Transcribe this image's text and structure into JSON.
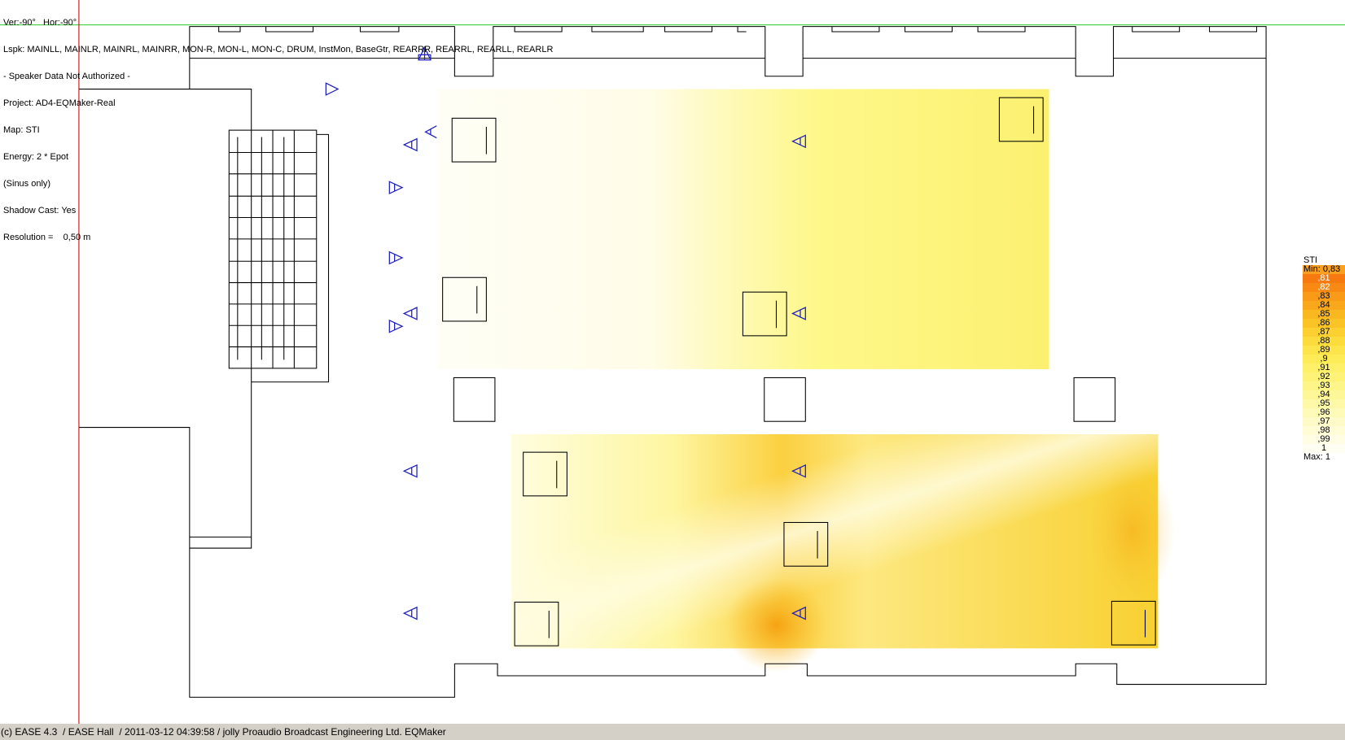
{
  "info": {
    "lines": [
      "Ver:-90°   Hor:-90°",
      "Lspk: MAINLL, MAINLR, MAINRL, MAINRR, MON-R, MON-L, MON-C, DRUM, InstMon, BaseGtr, REARRR, REARRL, REARLL, REARLR",
      "- Speaker Data Not Authorized -",
      "Project: AD4-EQMaker-Real",
      "Map: STI",
      "Energy: 2 * Epot",
      "(Sinus only)",
      "Shadow Cast: Yes",
      "Resolution =    0,50 m"
    ]
  },
  "legend": {
    "title": "STI",
    "min_label": "Min:  0,83",
    "max_label": "Max:  1",
    "rows": [
      {
        "label": ",81",
        "color": "#f77a10"
      },
      {
        "label": ",82",
        "color": "#f88a14"
      },
      {
        "label": ",83",
        "color": "#f99a18"
      },
      {
        "label": ",84",
        "color": "#f9a81c"
      },
      {
        "label": ",85",
        "color": "#f9b820"
      },
      {
        "label": ",86",
        "color": "#fac426"
      },
      {
        "label": ",87",
        "color": "#fbd030"
      },
      {
        "label": ",88",
        "color": "#fcdb3c"
      },
      {
        "label": ",89",
        "color": "#fde44a"
      },
      {
        "label": ",9",
        "color": "#fdeb58"
      },
      {
        "label": ",91",
        "color": "#fef068"
      },
      {
        "label": ",92",
        "color": "#fef378"
      },
      {
        "label": ",93",
        "color": "#fef588"
      },
      {
        "label": ",94",
        "color": "#fef798"
      },
      {
        "label": ",95",
        "color": "#fef9a8"
      },
      {
        "label": ",96",
        "color": "#fefab8"
      },
      {
        "label": ",97",
        "color": "#fefbc8"
      },
      {
        "label": ",98",
        "color": "#fffcd6"
      },
      {
        "label": ",99",
        "color": "#fffde4"
      },
      {
        "label": "1",
        "color": "#fffef2"
      }
    ]
  },
  "status": {
    "text": "(c) EASE 4.3  / EASE Hall  / 2011-03-12 04:39:58 / jolly Proaudio Broadcast Engineering Ltd. EQMaker"
  },
  "colors": {
    "speaker": "#2020c0",
    "cursor_vertical": "#cc0000",
    "cursor_horizontal": "#40d040"
  }
}
